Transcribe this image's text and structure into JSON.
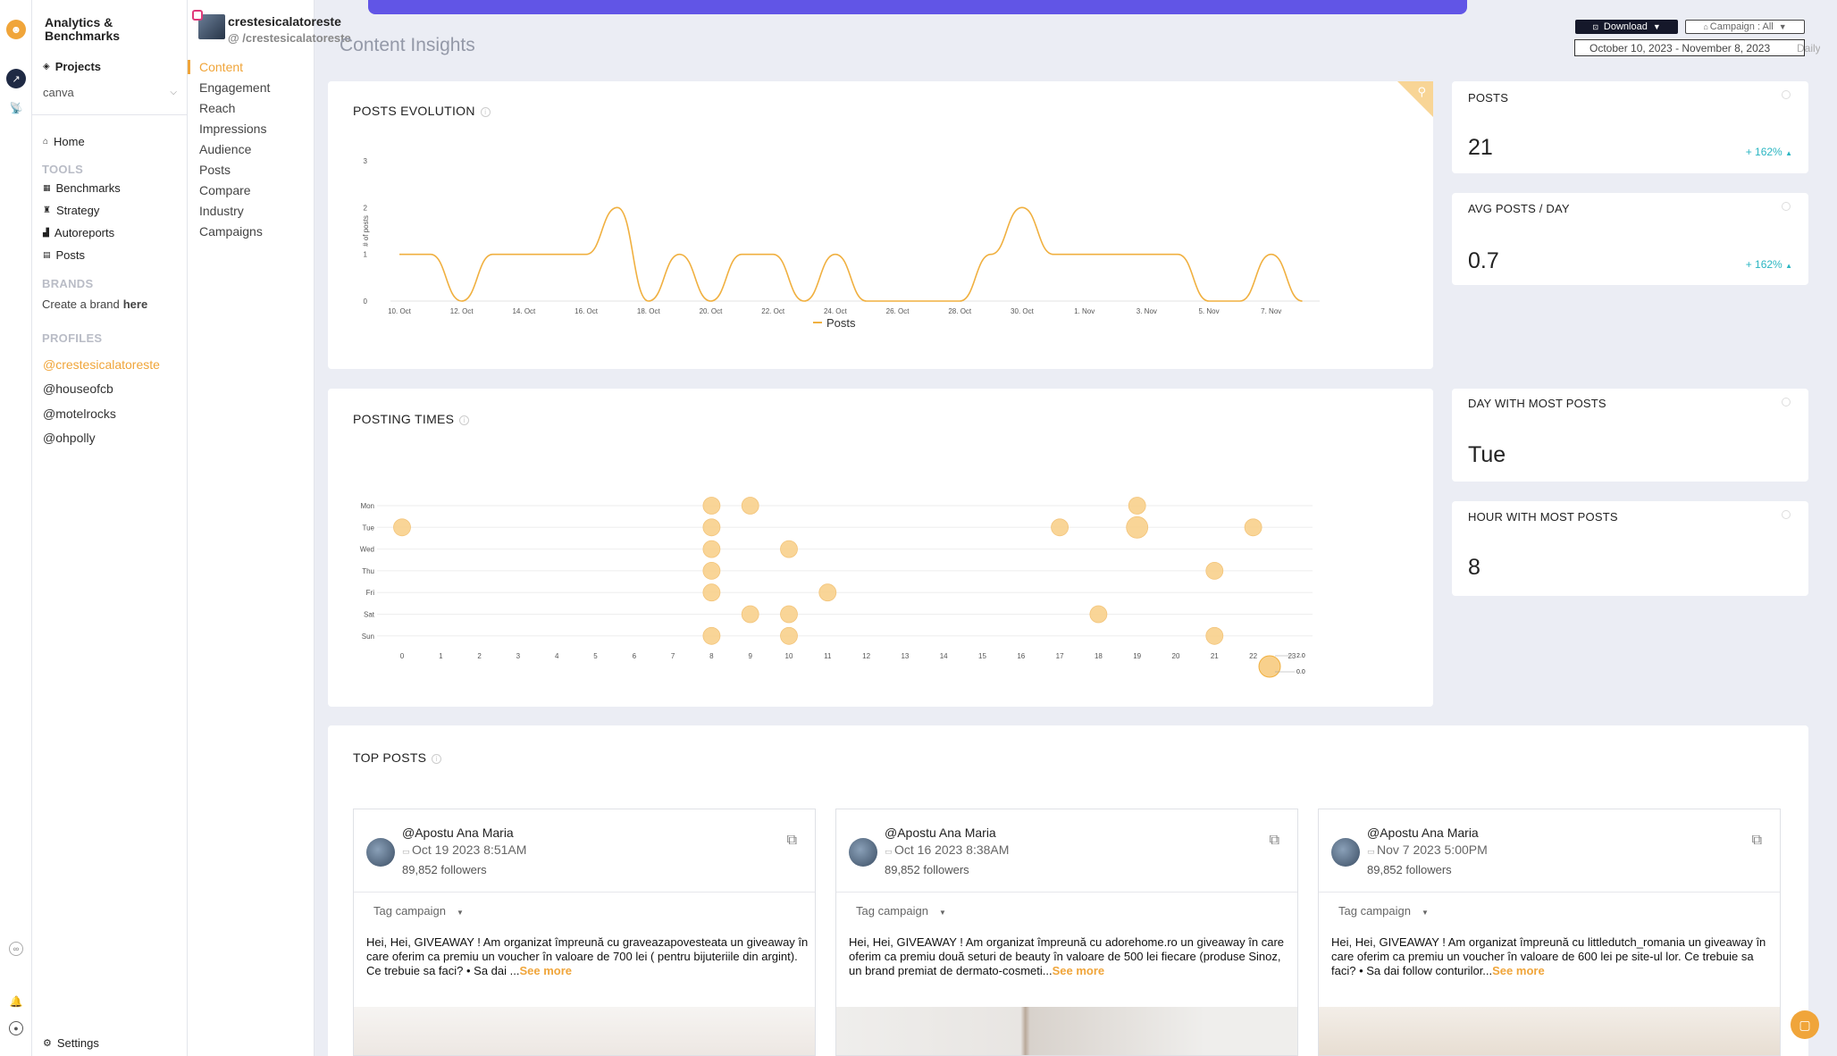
{
  "app": {
    "brand": "Analytics & Benchmarks",
    "projects_label": "Projects",
    "project_selected": "canva",
    "home": "Home",
    "tools_heading": "TOOLS",
    "tools": [
      "Benchmarks",
      "Strategy",
      "Autoreports",
      "Posts"
    ],
    "brands_heading": "BRANDS",
    "create_brand_prefix": "Create a brand",
    "create_brand_link": "here",
    "profiles_heading": "PROFILES",
    "profiles": [
      "@crestesicalatoreste",
      "@houseofcb",
      "@motelrocks",
      "@ohpolly"
    ],
    "settings": "Settings"
  },
  "account": {
    "name": "crestesicalatoreste",
    "handle": "/crestesicalatoreste"
  },
  "subnav": [
    "Content",
    "Engagement",
    "Reach",
    "Impressions",
    "Audience",
    "Posts",
    "Compare",
    "Industry",
    "Campaigns"
  ],
  "header": {
    "title": "Content Insights",
    "download": "Download",
    "campaign": "Campaign : All",
    "daterange": "October 10, 2023 - November 8, 2023",
    "daterange_tail": "Daily"
  },
  "kpis": [
    {
      "label": "POSTS",
      "value": "21",
      "delta": "+ 162%"
    },
    {
      "label": "AVG POSTS / DAY",
      "value": "0.7",
      "delta": "+ 162%"
    },
    {
      "label": "DAY WITH MOST POSTS",
      "value": "Tue",
      "delta": ""
    },
    {
      "label": "HOUR WITH MOST POSTS",
      "value": "8",
      "delta": ""
    }
  ],
  "sections": {
    "posts_evolution": "POSTS EVOLUTION",
    "posting_times": "POSTING TIMES",
    "top_posts": "TOP POSTS"
  },
  "chart_data": [
    {
      "type": "line",
      "title": "POSTS EVOLUTION",
      "ylabel": "# of posts",
      "xlabel": "",
      "ylim": [
        0,
        3
      ],
      "yticks": [
        "0",
        "1",
        "2",
        "3"
      ],
      "x": [
        "10. Oct",
        "11. Oct",
        "12. Oct",
        "13. Oct",
        "14. Oct",
        "15. Oct",
        "16. Oct",
        "17. Oct",
        "18. Oct",
        "19. Oct",
        "20. Oct",
        "21. Oct",
        "22. Oct",
        "23. Oct",
        "24. Oct",
        "25. Oct",
        "26. Oct",
        "27. Oct",
        "28. Oct",
        "29. Oct",
        "30. Oct",
        "31. Oct",
        "1. Nov",
        "2. Nov",
        "3. Nov",
        "4. Nov",
        "5. Nov",
        "6. Nov",
        "7. Nov",
        "8. Nov"
      ],
      "xtick_labels": [
        "10. Oct",
        "12. Oct",
        "14. Oct",
        "16. Oct",
        "18. Oct",
        "20. Oct",
        "22. Oct",
        "24. Oct",
        "26. Oct",
        "28. Oct",
        "30. Oct",
        "1. Nov",
        "3. Nov",
        "5. Nov",
        "7. Nov"
      ],
      "series": [
        {
          "name": "Posts",
          "values": [
            1,
            1,
            0,
            1,
            1,
            1,
            1,
            2,
            0,
            1,
            0,
            1,
            1,
            0,
            1,
            0,
            0,
            0,
            0,
            1,
            2,
            1,
            1,
            1,
            1,
            1,
            0,
            0,
            1,
            0
          ]
        }
      ],
      "legend": "bottom-center",
      "color": "#f0b040"
    },
    {
      "type": "scatter",
      "title": "POSTING TIMES",
      "y_categories": [
        "Mon",
        "Tue",
        "Wed",
        "Thu",
        "Fri",
        "Sat",
        "Sun"
      ],
      "x_categories": [
        "0",
        "1",
        "2",
        "3",
        "4",
        "5",
        "6",
        "7",
        "8",
        "9",
        "10",
        "11",
        "12",
        "13",
        "14",
        "15",
        "16",
        "17",
        "18",
        "19",
        "20",
        "21",
        "22",
        "23"
      ],
      "points": [
        {
          "hour": 8,
          "day": "Mon",
          "count": 1
        },
        {
          "hour": 9,
          "day": "Mon",
          "count": 1
        },
        {
          "hour": 19,
          "day": "Mon",
          "count": 1
        },
        {
          "hour": 0,
          "day": "Tue",
          "count": 1
        },
        {
          "hour": 8,
          "day": "Tue",
          "count": 1
        },
        {
          "hour": 17,
          "day": "Tue",
          "count": 1
        },
        {
          "hour": 19,
          "day": "Tue",
          "count": 2
        },
        {
          "hour": 22,
          "day": "Tue",
          "count": 1
        },
        {
          "hour": 8,
          "day": "Wed",
          "count": 1
        },
        {
          "hour": 10,
          "day": "Wed",
          "count": 1
        },
        {
          "hour": 8,
          "day": "Thu",
          "count": 1
        },
        {
          "hour": 21,
          "day": "Thu",
          "count": 1
        },
        {
          "hour": 8,
          "day": "Fri",
          "count": 1
        },
        {
          "hour": 11,
          "day": "Fri",
          "count": 1
        },
        {
          "hour": 9,
          "day": "Sat",
          "count": 1
        },
        {
          "hour": 10,
          "day": "Sat",
          "count": 1
        },
        {
          "hour": 18,
          "day": "Sat",
          "count": 1
        },
        {
          "hour": 8,
          "day": "Sun",
          "count": 1
        },
        {
          "hour": 10,
          "day": "Sun",
          "count": 1
        },
        {
          "hour": 21,
          "day": "Sun",
          "count": 1
        }
      ],
      "size_legend": [
        "2.0",
        "0.0"
      ],
      "color": "#f8d08c"
    }
  ],
  "top_posts": [
    {
      "author": "@Apostu Ana Maria",
      "date": "Oct 19 2023 8:51AM",
      "followers": "89,852 followers",
      "tag": "Tag campaign",
      "caption": "Hei, Hei, GIVEAWAY ! Am organizat împreună cu graveazapovesteata un giveaway în care oferim ca premiu un voucher în valoare de 700 lei ( pentru bijuteriile din argint). Ce trebuie sa faci? • Sa dai ...",
      "more": "See more"
    },
    {
      "author": "@Apostu Ana Maria",
      "date": "Oct 16 2023 8:38AM",
      "followers": "89,852 followers",
      "tag": "Tag campaign",
      "caption": "Hei, Hei, GIVEAWAY ! Am organizat împreună cu adorehome.ro un giveaway în care oferim ca premiu două seturi de beauty în valoare de 500 lei fiecare (produse Sinoz, un brand premiat de dermato-cosmeti...",
      "more": "See more"
    },
    {
      "author": "@Apostu Ana Maria",
      "date": "Nov 7 2023 5:00PM",
      "followers": "89,852 followers",
      "tag": "Tag campaign",
      "caption": "Hei, Hei, GIVEAWAY ! Am organizat împreună cu littledutch_romania un giveaway în care oferim ca premiu un voucher în valoare de 600 lei pe site-ul lor. Ce trebuie sa faci? • Sa dai follow conturilor...",
      "more": "See more"
    }
  ]
}
